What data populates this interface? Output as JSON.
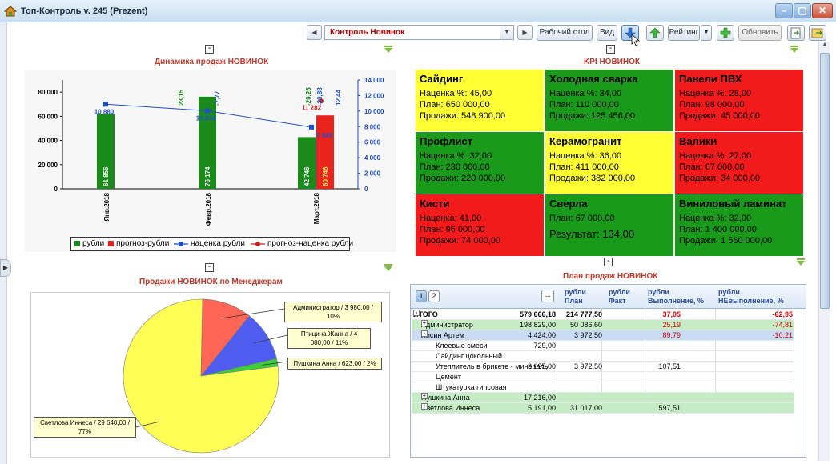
{
  "window": {
    "title": "Топ-Контроль v. 245 (Prezent)",
    "controls": [
      "–",
      "▢",
      "✕"
    ]
  },
  "toolbar": {
    "combo_value": "Контроль Новинок",
    "desktop_label": "Рабочий стол",
    "view_label": "Вид",
    "rating_label": "Рейтинг",
    "refresh_label": "Обновить"
  },
  "panels": {
    "sales_dynamics_title": "Динамика продаж НОВИНОК",
    "kpi_title": "KPI НОВИНОК",
    "managers_title": "Продажи НОВИНОК по Менеджерам",
    "plan_title": "План продаж НОВИНОК",
    "collapse_glyph": "-"
  },
  "chart_data": [
    {
      "type": "bar",
      "title": "Динамика продаж НОВИНОК",
      "categories": [
        "Янв.2018",
        "Февр.2018",
        "Март.2018"
      ],
      "left_axis": {
        "ticks": [
          "0",
          "20 000",
          "40 000",
          "60 000",
          "80 000"
        ],
        "ylim": [
          0,
          90000
        ]
      },
      "right_axis": {
        "ticks": [
          "0",
          "2 000",
          "4 000",
          "6 000",
          "8 000",
          "10 000",
          "12 000",
          "14 000"
        ],
        "ylim": [
          0,
          14000
        ]
      },
      "series": [
        {
          "name": "рубли",
          "color": "#1a8a1a",
          "values": [
            61856,
            76174,
            42746
          ],
          "labels": [
            "61 856",
            "76 174",
            "42 746"
          ]
        },
        {
          "name": "прогноз-рубли",
          "color": "#e8241c",
          "values": [
            null,
            null,
            60745
          ],
          "labels": [
            "",
            "",
            "60 745"
          ]
        },
        {
          "name": "наценка рубли",
          "color": "#1f4fc9",
          "values": [
            10880,
            10034,
            7939
          ],
          "labels": [
            "10 880",
            "10 034",
            "7 939"
          ]
        },
        {
          "name": "прогноз-наценка рубли",
          "color": "#c81e1e",
          "values": [
            null,
            null,
            11282
          ],
          "labels": [
            "",
            "",
            "11 282"
          ]
        }
      ],
      "top_labels": [
        {
          "text": "23,15",
          "color": "#1a8a1a"
        },
        {
          "text": "-7,77",
          "color": "#1f4fc9"
        },
        {
          "text": "-20,25",
          "color": "#1a8a1a"
        },
        {
          "text": "-20,88",
          "color": "#1f4fc9"
        },
        {
          "text": "12,44",
          "color": "#1f4fc9"
        }
      ]
    },
    {
      "type": "pie",
      "title": "Продажи НОВИНОК по Менеджерам",
      "series": [
        {
          "name": "Администратор",
          "value": 3980.0,
          "percent": 10,
          "color": "#ff6655",
          "label": "Администратор / 3 980,00 / 10%"
        },
        {
          "name": "Птицина Жанна",
          "value": 4080.0,
          "percent": 11,
          "color": "#4f5cf0",
          "label": "Птицина Жанна / 4 080,00 / 11%"
        },
        {
          "name": "Пушкина Анна",
          "value": 623.0,
          "percent": 2,
          "color": "#3ccc3c",
          "label": "Пушкина Анна / 623,00 / 2%"
        },
        {
          "name": "Светлова Иннеса",
          "value": 29640.0,
          "percent": 77,
          "color": "#ffff55",
          "label": "Светлова Иннеса / 29 640,00 / 77%"
        }
      ]
    }
  ],
  "legend": [
    "рубли",
    "прогноз-рубли",
    "наценка рубли",
    "прогноз-наценка рубли"
  ],
  "kpi": [
    {
      "name": "Сайдинг",
      "color": "yellow",
      "lines": [
        "Наценка %: 45,00",
        "План: 650 000,00",
        "Продажи: 548 900,00"
      ]
    },
    {
      "name": "Холодная сварка",
      "color": "green",
      "lines": [
        "Наценка %: 34,00",
        "План: 110 000,00",
        "Продажи: 125 456,00"
      ]
    },
    {
      "name": "Панели ПВХ",
      "color": "red",
      "lines": [
        "Наценка %: 28,00",
        "План: 98 000,00",
        "Продажи: 45 000,00"
      ]
    },
    {
      "name": "Профлист",
      "color": "green",
      "lines": [
        "Наценка %: 32,00",
        "План: 230 000,00",
        "Продажи: 220 000,00"
      ]
    },
    {
      "name": "Керамогранит",
      "color": "yellow",
      "lines": [
        "Наценка %: 36,00",
        "План: 411 000,00",
        "Продажи: 382 000,00"
      ]
    },
    {
      "name": "Валики",
      "color": "red",
      "lines": [
        "Наценка %: 27,00",
        "План: 67 000,00",
        "Продажи: 34 000,00"
      ]
    },
    {
      "name": "Кисти",
      "color": "red",
      "lines": [
        "Наценка: 41,00",
        "План: 96 000,00",
        "Продажи: 74 000,00"
      ]
    },
    {
      "name": "Сверла",
      "color": "green",
      "lines": [
        "План: 67 000,00",
        "Результат: 134,00"
      ]
    },
    {
      "name": "Виниловый ламинат",
      "color": "green",
      "lines": [
        "Наценка %: 32,00",
        "План: 1 400 000,00",
        "Продажи: 1 560 000,00"
      ]
    }
  ],
  "plan_table": {
    "pages": [
      "1",
      "2"
    ],
    "headers": [
      {
        "top": "рубли",
        "bottom": "План"
      },
      {
        "top": "рубли",
        "bottom": "Факт"
      },
      {
        "top": "рубли",
        "bottom": "Выполнение, %"
      },
      {
        "top": "рубли",
        "bottom": "НЕвыполнение, %"
      }
    ],
    "rows": [
      {
        "label": "ИТОГО",
        "toggle": "-",
        "indent": 0,
        "style": "total",
        "plan": "579 666,18",
        "fact": "214 777,50",
        "done": "37,05",
        "undone": "-62,95"
      },
      {
        "label": "Администратор",
        "toggle": "+",
        "indent": 1,
        "style": "green",
        "plan": "198 829,00",
        "fact": "50 086,60",
        "done": "25,19",
        "undone": "-74,81"
      },
      {
        "label": "Лисин Артем",
        "toggle": "-",
        "indent": 1,
        "style": "blue",
        "plan": "4 424,00",
        "fact": "3 972,50",
        "done": "89,79",
        "undone": "-10,21"
      },
      {
        "label": "Клеевые смеси",
        "toggle": "",
        "indent": 2,
        "style": "",
        "plan": "729,00",
        "fact": "",
        "done": "",
        "undone": ""
      },
      {
        "label": "Сайдинг цокольный",
        "toggle": "",
        "indent": 2,
        "style": "",
        "plan": "",
        "fact": "",
        "done": "",
        "undone": ""
      },
      {
        "label": "Утеплитель в брикете - минераль",
        "toggle": "",
        "indent": 2,
        "style": "",
        "plan": "3 695,00",
        "fact": "3 972,50",
        "done": "107,51",
        "undone": ""
      },
      {
        "label": "Цемент",
        "toggle": "",
        "indent": 2,
        "style": "",
        "plan": "",
        "fact": "",
        "done": "",
        "undone": ""
      },
      {
        "label": "Штукатурка гипсовая",
        "toggle": "",
        "indent": 2,
        "style": "",
        "plan": "",
        "fact": "",
        "done": "",
        "undone": ""
      },
      {
        "label": "Пушкина Анна",
        "toggle": "+",
        "indent": 1,
        "style": "green",
        "plan": "17 216,00",
        "fact": "",
        "done": "",
        "undone": ""
      },
      {
        "label": "Светлова Иннеса",
        "toggle": "+",
        "indent": 1,
        "style": "green",
        "plan": "5 191,00",
        "fact": "31 017,00",
        "done": "597,51",
        "undone": ""
      }
    ]
  },
  "icons": {
    "app": "app-house-icon",
    "nav_prev": "chevron-left-icon",
    "nav_next": "chevron-right-icon",
    "down": "arrow-down-icon",
    "up": "arrow-up-icon",
    "add": "plus-icon",
    "export": "export-icon",
    "close_panel": "exit-icon"
  }
}
